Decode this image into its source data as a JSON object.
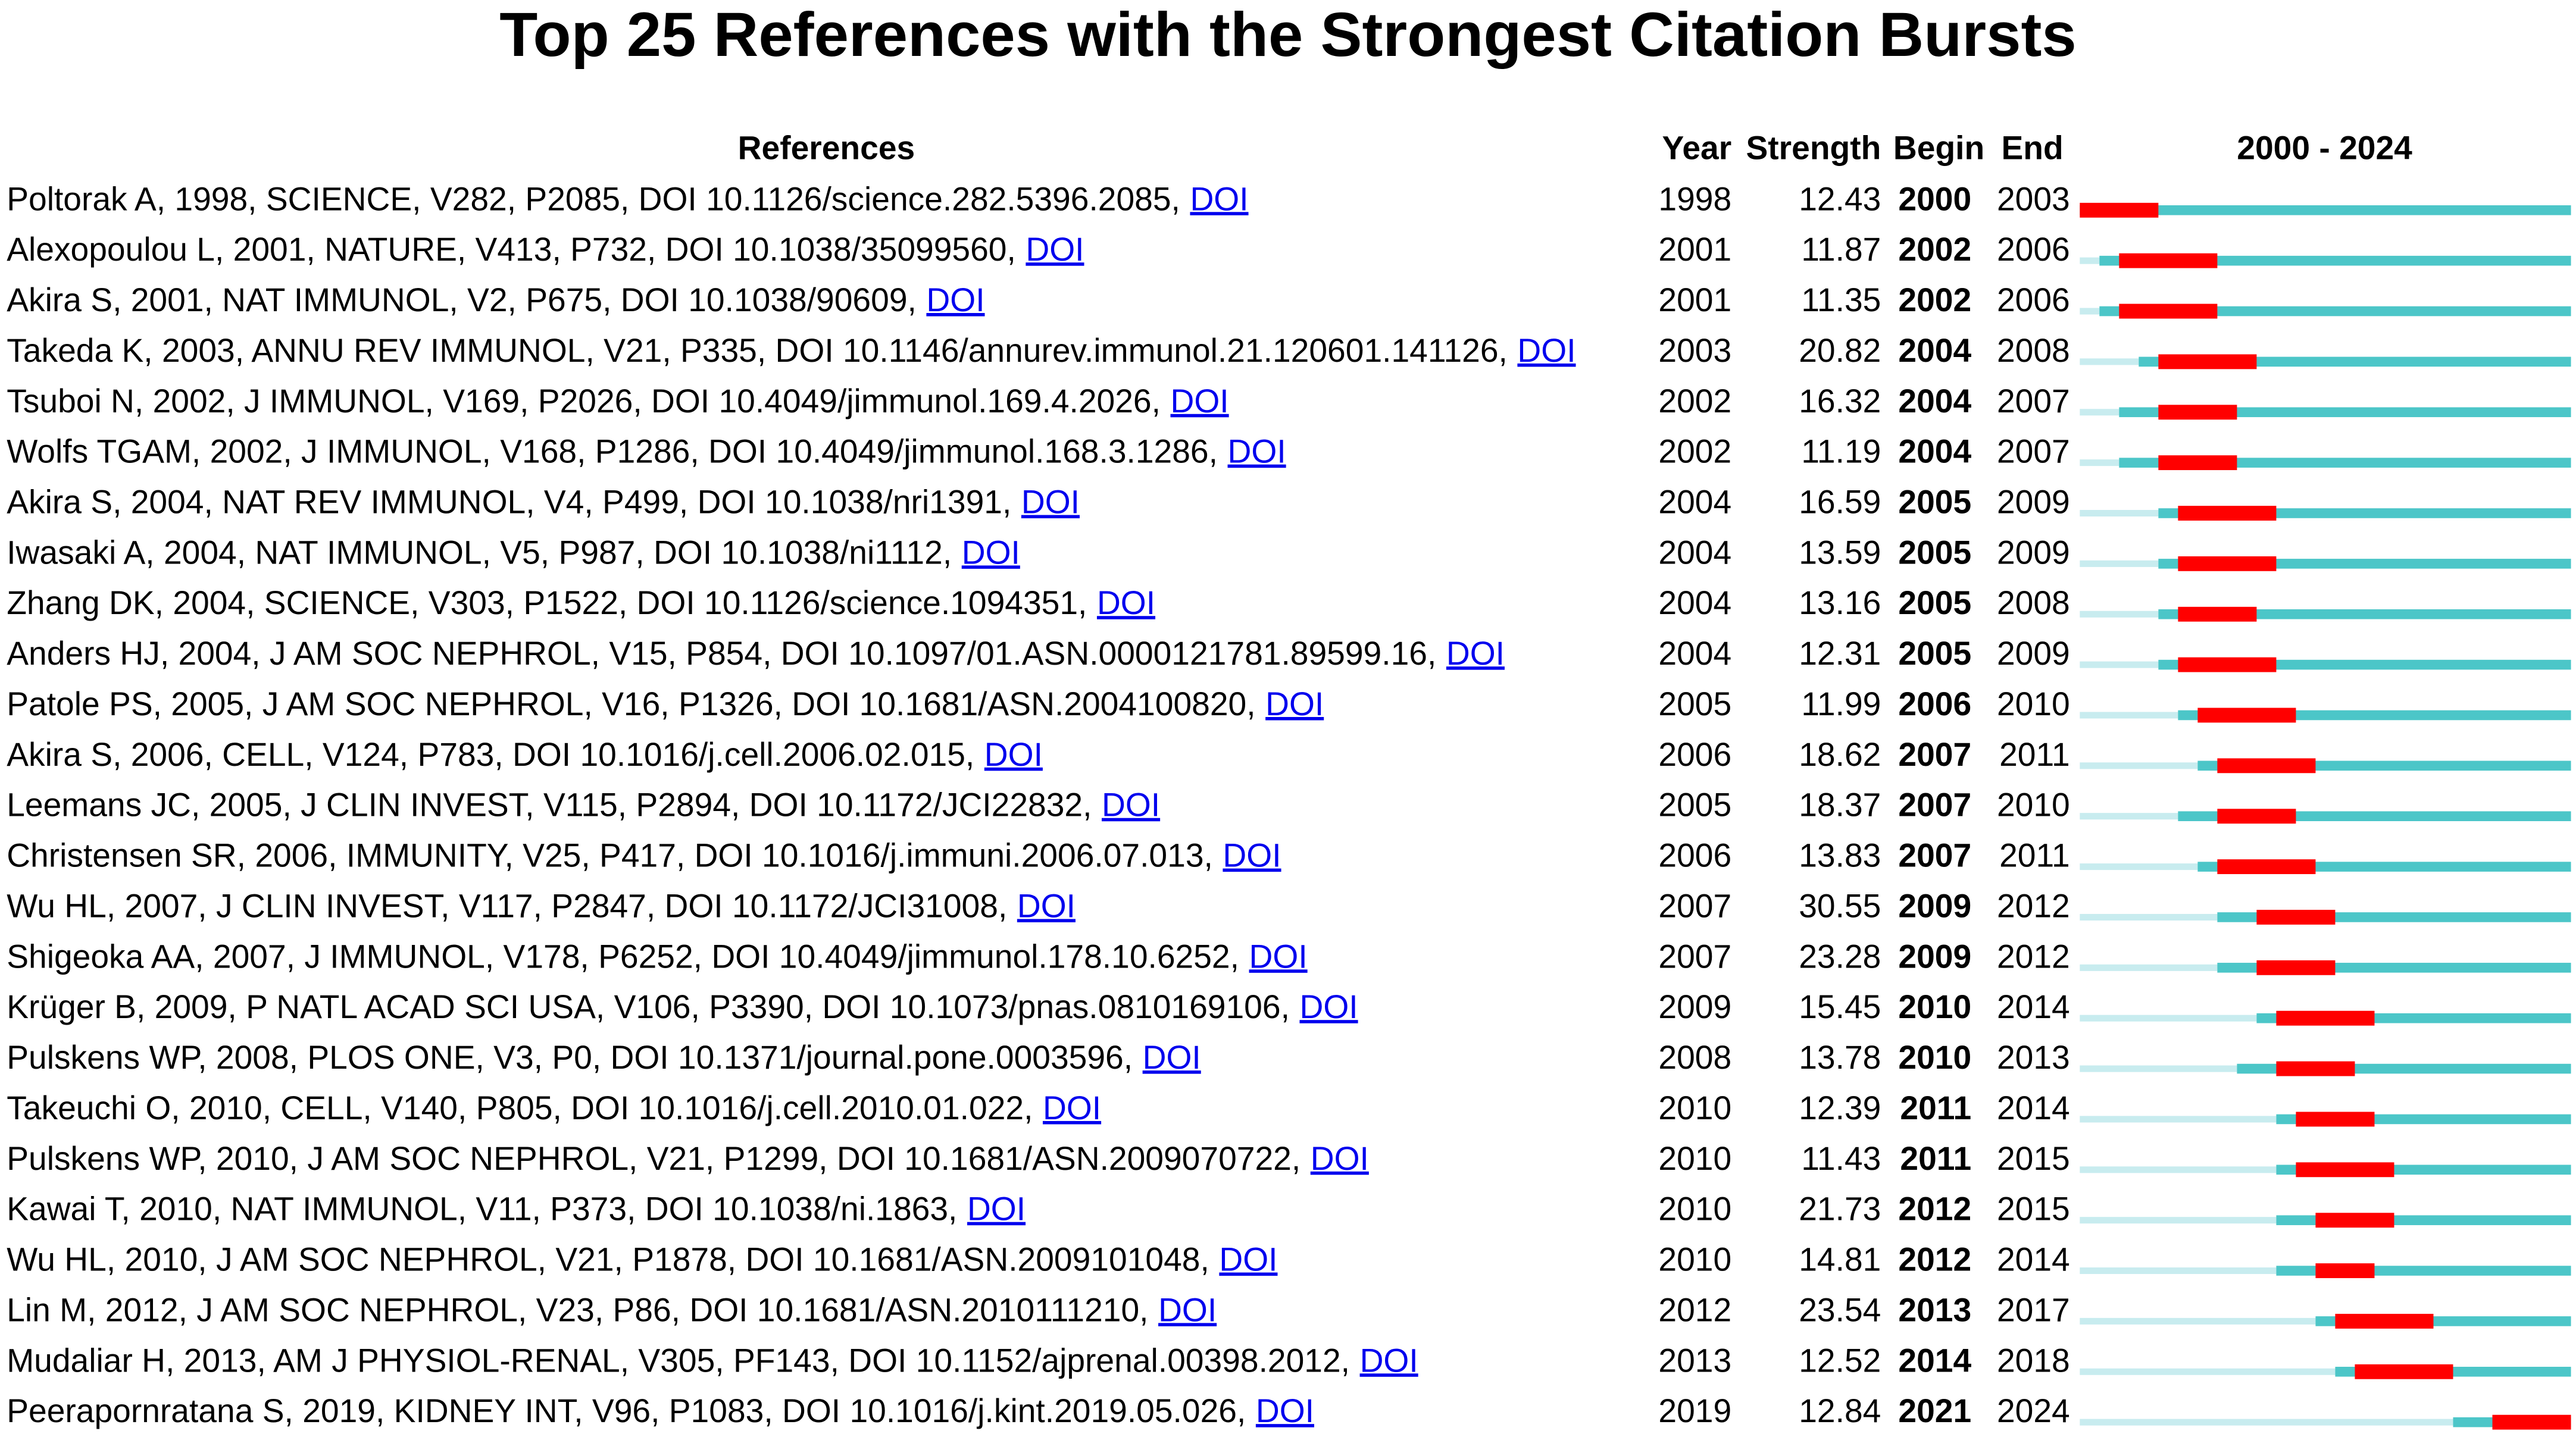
{
  "title": "Top 25 References with the Strongest Citation Bursts",
  "table": {
    "headers": {
      "reference": "References",
      "year": "Year",
      "strength": "Strength",
      "begin": "Begin",
      "end": "End",
      "timeline": "2000 - 2024"
    },
    "timeline_start": 2000,
    "timeline_end": 2024,
    "rows": [
      {
        "reference": "Poltorak A, 1998, SCIENCE, V282, P2085, DOI 10.1126/science.282.5396.2085,",
        "link": "DOI",
        "year": 1998,
        "strength": 12.43,
        "begin": 2000,
        "end": 2003
      },
      {
        "reference": "Alexopoulou L, 2001, NATURE, V413, P732, DOI 10.1038/35099560,",
        "link": "DOI",
        "year": 2001,
        "strength": 11.87,
        "begin": 2002,
        "end": 2006
      },
      {
        "reference": "Akira S, 2001, NAT IMMUNOL, V2, P675, DOI 10.1038/90609,",
        "link": "DOI",
        "year": 2001,
        "strength": 11.35,
        "begin": 2002,
        "end": 2006
      },
      {
        "reference": "Takeda K, 2003, ANNU REV IMMUNOL, V21, P335, DOI 10.1146/annurev.immunol.21.120601.141126,",
        "link": "DOI",
        "year": 2003,
        "strength": 20.82,
        "begin": 2004,
        "end": 2008
      },
      {
        "reference": "Tsuboi N, 2002, J IMMUNOL, V169, P2026, DOI 10.4049/jimmunol.169.4.2026,",
        "link": "DOI",
        "year": 2002,
        "strength": 16.32,
        "begin": 2004,
        "end": 2007
      },
      {
        "reference": "Wolfs TGAM, 2002, J IMMUNOL, V168, P1286, DOI 10.4049/jimmunol.168.3.1286,",
        "link": "DOI",
        "year": 2002,
        "strength": 11.19,
        "begin": 2004,
        "end": 2007
      },
      {
        "reference": "Akira S, 2004, NAT REV IMMUNOL, V4, P499, DOI 10.1038/nri1391,",
        "link": "DOI",
        "year": 2004,
        "strength": 16.59,
        "begin": 2005,
        "end": 2009
      },
      {
        "reference": "Iwasaki A, 2004, NAT IMMUNOL, V5, P987, DOI 10.1038/ni1112,",
        "link": "DOI",
        "year": 2004,
        "strength": 13.59,
        "begin": 2005,
        "end": 2009
      },
      {
        "reference": "Zhang DK, 2004, SCIENCE, V303, P1522, DOI 10.1126/science.1094351,",
        "link": "DOI",
        "year": 2004,
        "strength": 13.16,
        "begin": 2005,
        "end": 2008
      },
      {
        "reference": "Anders HJ, 2004, J AM SOC NEPHROL, V15, P854, DOI 10.1097/01.ASN.0000121781.89599.16,",
        "link": "DOI",
        "year": 2004,
        "strength": 12.31,
        "begin": 2005,
        "end": 2009
      },
      {
        "reference": "Patole PS, 2005, J AM SOC NEPHROL, V16, P1326, DOI 10.1681/ASN.2004100820,",
        "link": "DOI",
        "year": 2005,
        "strength": 11.99,
        "begin": 2006,
        "end": 2010
      },
      {
        "reference": "Akira S, 2006, CELL, V124, P783, DOI 10.1016/j.cell.2006.02.015,",
        "link": "DOI",
        "year": 2006,
        "strength": 18.62,
        "begin": 2007,
        "end": 2011
      },
      {
        "reference": "Leemans JC, 2005, J CLIN INVEST, V115, P2894, DOI 10.1172/JCI22832,",
        "link": "DOI",
        "year": 2005,
        "strength": 18.37,
        "begin": 2007,
        "end": 2010
      },
      {
        "reference": "Christensen SR, 2006, IMMUNITY, V25, P417, DOI 10.1016/j.immuni.2006.07.013,",
        "link": "DOI",
        "year": 2006,
        "strength": 13.83,
        "begin": 2007,
        "end": 2011
      },
      {
        "reference": "Wu HL, 2007, J CLIN INVEST, V117, P2847, DOI 10.1172/JCI31008,",
        "link": "DOI",
        "year": 2007,
        "strength": 30.55,
        "begin": 2009,
        "end": 2012
      },
      {
        "reference": "Shigeoka AA, 2007, J IMMUNOL, V178, P6252, DOI 10.4049/jimmunol.178.10.6252,",
        "link": "DOI",
        "year": 2007,
        "strength": 23.28,
        "begin": 2009,
        "end": 2012
      },
      {
        "reference": "Krüger B, 2009, P NATL ACAD SCI USA, V106, P3390, DOI 10.1073/pnas.0810169106,",
        "link": "DOI",
        "year": 2009,
        "strength": 15.45,
        "begin": 2010,
        "end": 2014
      },
      {
        "reference": "Pulskens WP, 2008, PLOS ONE, V3, P0, DOI 10.1371/journal.pone.0003596,",
        "link": "DOI",
        "year": 2008,
        "strength": 13.78,
        "begin": 2010,
        "end": 2013
      },
      {
        "reference": "Takeuchi O, 2010, CELL, V140, P805, DOI 10.1016/j.cell.2010.01.022,",
        "link": "DOI",
        "year": 2010,
        "strength": 12.39,
        "begin": 2011,
        "end": 2014
      },
      {
        "reference": "Pulskens WP, 2010, J AM SOC NEPHROL, V21, P1299, DOI 10.1681/ASN.2009070722,",
        "link": "DOI",
        "year": 2010,
        "strength": 11.43,
        "begin": 2011,
        "end": 2015
      },
      {
        "reference": "Kawai T, 2010, NAT IMMUNOL, V11, P373, DOI 10.1038/ni.1863,",
        "link": "DOI",
        "year": 2010,
        "strength": 21.73,
        "begin": 2012,
        "end": 2015
      },
      {
        "reference": "Wu HL, 2010, J AM SOC NEPHROL, V21, P1878, DOI 10.1681/ASN.2009101048,",
        "link": "DOI",
        "year": 2010,
        "strength": 14.81,
        "begin": 2012,
        "end": 2014
      },
      {
        "reference": "Lin M, 2012, J AM SOC NEPHROL, V23, P86, DOI 10.1681/ASN.2010111210,",
        "link": "DOI",
        "year": 2012,
        "strength": 23.54,
        "begin": 2013,
        "end": 2017
      },
      {
        "reference": "Mudaliar H, 2013, AM J PHYSIOL-RENAL, V305, PF143, DOI 10.1152/ajprenal.00398.2012,",
        "link": "DOI",
        "year": 2013,
        "strength": 12.52,
        "begin": 2014,
        "end": 2018
      },
      {
        "reference": "Peerapornratana S, 2019, KIDNEY INT, V96, P1083, DOI 10.1016/j.kint.2019.05.026,",
        "link": "DOI",
        "year": 2019,
        "strength": 12.84,
        "begin": 2021,
        "end": 2024
      }
    ]
  }
}
